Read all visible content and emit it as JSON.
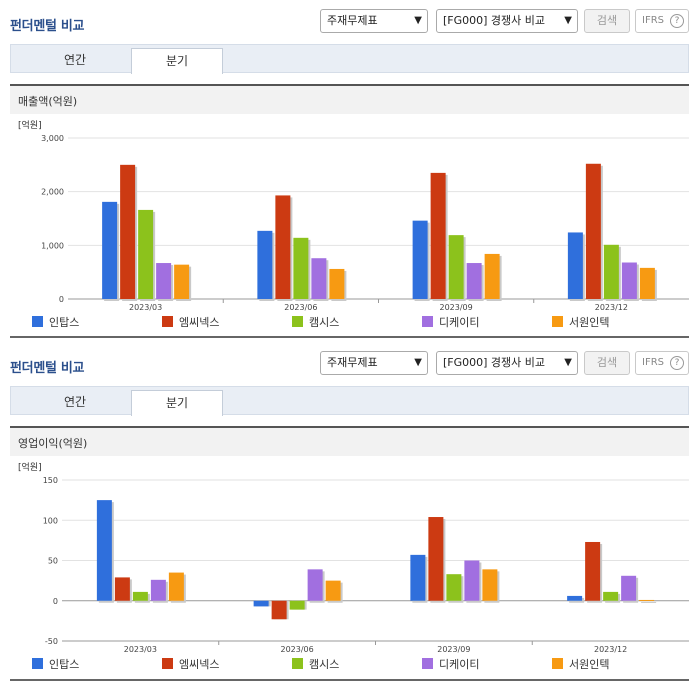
{
  "panels": [
    {
      "title": "펀더멘털 비교",
      "select1": "주재무제표",
      "select2": "[FG000] 경쟁사 비교",
      "search_label": "검색",
      "ifrs_label": "IFRS",
      "help_label": "?",
      "tabs": [
        "연간",
        "분기"
      ],
      "active_tab": 1,
      "section_title": "매출액(억원)",
      "chart_data": {
        "type": "bar",
        "unit_label": "[억원]",
        "categories": [
          "2023/03",
          "2023/06",
          "2023/09",
          "2023/12"
        ],
        "series": [
          {
            "name": "인탑스",
            "color": "#2f6fdc",
            "values": [
              1810,
              1270,
              1460,
              1240
            ]
          },
          {
            "name": "엠씨넥스",
            "color": "#cc3a12",
            "values": [
              2500,
              1930,
              2350,
              2520
            ]
          },
          {
            "name": "캠시스",
            "color": "#8cc21c",
            "values": [
              1660,
              1140,
              1190,
              1010
            ]
          },
          {
            "name": "디케이티",
            "color": "#a16fe0",
            "values": [
              670,
              760,
              670,
              680
            ]
          },
          {
            "name": "서원인텍",
            "color": "#f79a12",
            "values": [
              640,
              560,
              840,
              580
            ]
          }
        ],
        "yticks": [
          "3,000",
          "2,000",
          "1,000",
          "0"
        ],
        "ylim": [
          0,
          3000
        ],
        "grid": true
      }
    },
    {
      "title": "펀더멘털 비교",
      "select1": "주재무제표",
      "select2": "[FG000] 경쟁사 비교",
      "search_label": "검색",
      "ifrs_label": "IFRS",
      "help_label": "?",
      "tabs": [
        "연간",
        "분기"
      ],
      "active_tab": 1,
      "section_title": "영업이익(억원)",
      "chart_data": {
        "type": "bar",
        "unit_label": "[억원]",
        "categories": [
          "2023/03",
          "2023/06",
          "2023/09",
          "2023/12"
        ],
        "series": [
          {
            "name": "인탑스",
            "color": "#2f6fdc",
            "values": [
              125,
              -7,
              57,
              6
            ]
          },
          {
            "name": "엠씨넥스",
            "color": "#cc3a12",
            "values": [
              29,
              -23,
              104,
              73
            ]
          },
          {
            "name": "캠시스",
            "color": "#8cc21c",
            "values": [
              11,
              -11,
              33,
              11
            ]
          },
          {
            "name": "디케이티",
            "color": "#a16fe0",
            "values": [
              26,
              39,
              50,
              31
            ]
          },
          {
            "name": "서원인텍",
            "color": "#f79a12",
            "values": [
              35,
              25,
              39,
              1
            ]
          }
        ],
        "yticks": [
          "150",
          "100",
          "50",
          "0",
          "-50"
        ],
        "ylim": [
          -50,
          150
        ],
        "grid": true
      }
    }
  ]
}
